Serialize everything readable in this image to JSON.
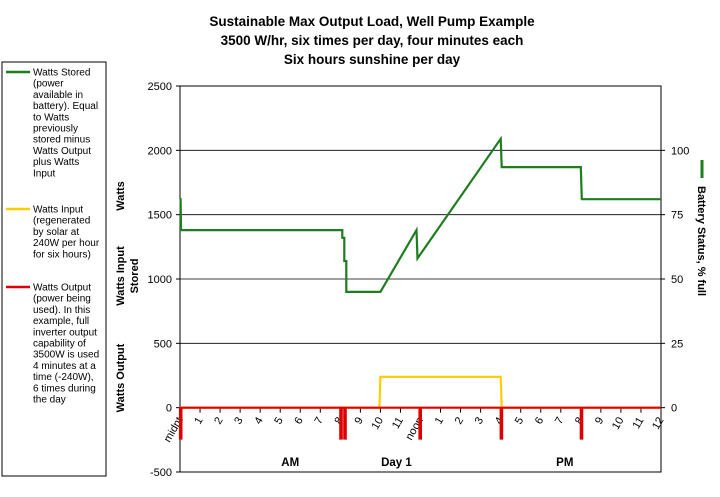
{
  "chart_data": {
    "type": "line",
    "title": [
      "Sustainable Max Output Load, Well Pump Example",
      "3500 W/hr, six times per day, four minutes each",
      "Six hours sunshine per day"
    ],
    "y_left_label_parts": [
      "Watts",
      "Watts Input",
      "Stored",
      "Watts Output"
    ],
    "y_right_label": "Battery Status, % full",
    "y_left_ticks": [
      2500,
      2000,
      1500,
      1000,
      500,
      0,
      -500
    ],
    "y_right_ticks": [
      100,
      75,
      50,
      25,
      0
    ],
    "ylim": [
      -500,
      2500
    ],
    "xlim": [
      0,
      24
    ],
    "x_tick_labels": [
      "midnt",
      "1",
      "2",
      "3",
      "4",
      "5",
      "6",
      "7",
      "8",
      "9",
      "10",
      "11",
      "noon",
      "1",
      "2",
      "3",
      "4",
      "5",
      "6",
      "7",
      "8",
      "9",
      "10",
      "11",
      "12"
    ],
    "x_groups": [
      {
        "label": "AM",
        "x": 5.5
      },
      {
        "label": "Day 1",
        "x": 10.8
      },
      {
        "label": "PM",
        "x": 19.2
      }
    ],
    "grid": true,
    "series": [
      {
        "name": "Watts Stored",
        "color": "#1e7d1e",
        "points": [
          [
            0,
            1620
          ],
          [
            0.03,
            1620
          ],
          [
            0.05,
            1380
          ],
          [
            8.1,
            1380
          ],
          [
            8.1,
            1320
          ],
          [
            8.2,
            1320
          ],
          [
            8.2,
            1140
          ],
          [
            8.3,
            1140
          ],
          [
            8.3,
            900
          ],
          [
            10.0,
            900
          ],
          [
            11.8,
            1380
          ],
          [
            11.85,
            1160
          ],
          [
            16.0,
            2090
          ],
          [
            16.05,
            1870
          ],
          [
            20.0,
            1870
          ],
          [
            20.05,
            1620
          ],
          [
            24.0,
            1620
          ]
        ]
      },
      {
        "name": "Watts Input",
        "color": "#ffcc00",
        "points": [
          [
            0,
            0
          ],
          [
            9.95,
            0
          ],
          [
            10.0,
            240
          ],
          [
            16.0,
            240
          ],
          [
            16.05,
            0
          ],
          [
            24,
            0
          ]
        ]
      },
      {
        "name": "Watts Output",
        "color": "#dd0000",
        "points": [
          [
            0,
            0
          ],
          [
            0.0,
            -240
          ],
          [
            0.07,
            -240
          ],
          [
            0.07,
            0
          ],
          [
            8.0,
            0
          ],
          [
            8.0,
            -240
          ],
          [
            8.07,
            -240
          ],
          [
            8.07,
            0
          ],
          [
            8.2,
            0
          ],
          [
            8.2,
            -240
          ],
          [
            8.27,
            -240
          ],
          [
            8.27,
            0
          ],
          [
            11.95,
            0
          ],
          [
            11.95,
            -240
          ],
          [
            12.02,
            -240
          ],
          [
            12.02,
            0
          ],
          [
            16.0,
            0
          ],
          [
            16.0,
            -240
          ],
          [
            16.07,
            -240
          ],
          [
            16.07,
            0
          ],
          [
            20.0,
            0
          ],
          [
            20.0,
            -240
          ],
          [
            20.07,
            -240
          ],
          [
            20.07,
            0
          ],
          [
            24,
            0
          ]
        ]
      }
    ]
  },
  "legend": [
    {
      "lines": [
        "Watts Stored",
        "(power",
        "available in",
        "battery). Equal",
        "to Watts",
        "previously",
        "stored minus",
        "Watts Output",
        "plus Watts",
        "Input"
      ],
      "color": "#1e7d1e"
    },
    {
      "lines": [
        "Watts Input",
        "(regenerated",
        "by solar at",
        "240W per hour",
        "for six hours)"
      ],
      "color": "#ffcc00"
    },
    {
      "lines": [
        "Watts Output",
        "(power being",
        "used).  In this",
        "example, full",
        "inverter output",
        "capability of",
        "3500W is used",
        "4 minutes at a",
        "time (-240W),",
        "6 times during",
        "the day"
      ],
      "color": "#dd0000"
    }
  ]
}
